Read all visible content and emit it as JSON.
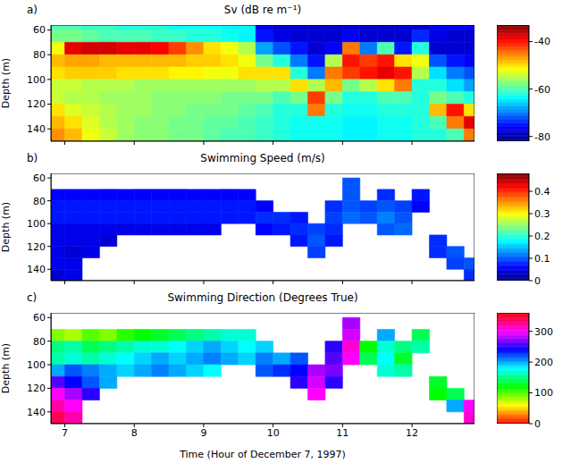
{
  "chart_data": [
    {
      "type": "heatmap",
      "panel_label": "a)",
      "title": "Sv (dB re m⁻¹)",
      "y_label": "Depth (m)",
      "tick_labels": "y",
      "xlim": [
        6.8,
        12.9
      ],
      "xticks": [
        7,
        8,
        9,
        10,
        11,
        12
      ],
      "ylim": [
        56,
        150
      ],
      "yticks": [
        60,
        80,
        100,
        120,
        140
      ],
      "x_edges": [
        6.8,
        7,
        7.25,
        7.5,
        7.75,
        8,
        8.25,
        8.5,
        8.75,
        9,
        9.25,
        9.5,
        9.75,
        10,
        10.25,
        10.5,
        10.75,
        11,
        11.25,
        11.5,
        11.75,
        12,
        12.25,
        12.5,
        12.75,
        12.9
      ],
      "y_edges": [
        56,
        60,
        70,
        80,
        90,
        100,
        110,
        120,
        130,
        140,
        150
      ],
      "values": [
        [
          -60,
          -60,
          -61,
          -61,
          -62,
          -62,
          -62,
          -63,
          -63,
          -63,
          -64,
          -64,
          -76,
          -78,
          -78,
          -78,
          -78,
          -78,
          -78,
          -78,
          -78,
          -78,
          -76,
          -76,
          -76
        ],
        [
          -58,
          -58,
          -59,
          -60,
          -60,
          -60,
          -61,
          -61,
          -62,
          -62,
          -63,
          -64,
          -75,
          -77,
          -78,
          -78,
          -78,
          -76,
          -78,
          -78,
          -78,
          -74,
          -77,
          -78,
          -78
        ],
        [
          -52,
          -38,
          -37,
          -37,
          -38,
          -38,
          -39,
          -42,
          -46,
          -50,
          -52,
          -55,
          -68,
          -72,
          -75,
          -78,
          -76,
          -45,
          -70,
          -60,
          -75,
          -62,
          -78,
          -78,
          -78
        ],
        [
          -48,
          -47,
          -47,
          -48,
          -48,
          -48,
          -48,
          -48,
          -49,
          -49,
          -50,
          -52,
          -58,
          -62,
          -70,
          -75,
          -55,
          -40,
          -42,
          -40,
          -50,
          -52,
          -72,
          -75,
          -76
        ],
        [
          -50,
          -49,
          -49,
          -49,
          -50,
          -50,
          -50,
          -51,
          -51,
          -52,
          -52,
          -50,
          -50,
          -50,
          -62,
          -70,
          -45,
          -42,
          -40,
          -38,
          -40,
          -55,
          -65,
          -70,
          -72
        ],
        [
          -54,
          -54,
          -55,
          -55,
          -55,
          -56,
          -56,
          -56,
          -56,
          -56,
          -56,
          -56,
          -55,
          -55,
          -50,
          -55,
          -48,
          -58,
          -55,
          -50,
          -45,
          -62,
          -62,
          -65,
          -68
        ],
        [
          -54,
          -55,
          -55,
          -56,
          -56,
          -56,
          -57,
          -57,
          -57,
          -57,
          -58,
          -58,
          -58,
          -60,
          -58,
          -42,
          -58,
          -62,
          -62,
          -60,
          -60,
          -62,
          -58,
          -60,
          -62
        ],
        [
          -50,
          -53,
          -54,
          -55,
          -56,
          -56,
          -57,
          -57,
          -58,
          -58,
          -58,
          -59,
          -60,
          -62,
          -62,
          -45,
          -62,
          -63,
          -63,
          -62,
          -62,
          -62,
          -48,
          -40,
          -50
        ],
        [
          -48,
          -50,
          -53,
          -55,
          -56,
          -57,
          -57,
          -58,
          -58,
          -59,
          -59,
          -60,
          -61,
          -62,
          -63,
          -63,
          -63,
          -64,
          -64,
          -63,
          -63,
          -62,
          -60,
          -45,
          -38
        ],
        [
          -46,
          -48,
          -52,
          -54,
          -56,
          -57,
          -57,
          -58,
          -58,
          -59,
          -60,
          -60,
          -61,
          -62,
          -63,
          -63,
          -63,
          -64,
          -64,
          -63,
          -63,
          -62,
          -62,
          -60,
          -45
        ]
      ],
      "colorbar_range": [
        -82,
        -33
      ],
      "colorbar_ticks": [
        -80,
        -60,
        -40
      ]
    },
    {
      "type": "heatmap",
      "panel_label": "b)",
      "title": "Swimming Speed (m/s)",
      "y_label": "Depth (m)",
      "tick_labels": "y",
      "xlim": [
        6.8,
        12.9
      ],
      "xticks": [
        7,
        8,
        9,
        10,
        11,
        12
      ],
      "ylim": [
        56,
        150
      ],
      "yticks": [
        60,
        80,
        100,
        120,
        140
      ],
      "x_edges": [
        6.8,
        7,
        7.25,
        7.5,
        7.75,
        8,
        8.25,
        8.5,
        8.75,
        9,
        9.25,
        9.5,
        9.75,
        10,
        10.25,
        10.5,
        10.75,
        11,
        11.25,
        11.5,
        11.75,
        12,
        12.25,
        12.5,
        12.75,
        12.9
      ],
      "y_edges": [
        56,
        60,
        70,
        80,
        90,
        100,
        110,
        120,
        130,
        140,
        150
      ],
      "values": [
        [
          null,
          null,
          null,
          null,
          null,
          null,
          null,
          null,
          null,
          null,
          null,
          null,
          null,
          null,
          null,
          null,
          null,
          null,
          null,
          null,
          null,
          null,
          null,
          null,
          null
        ],
        [
          null,
          null,
          null,
          null,
          null,
          null,
          null,
          null,
          null,
          null,
          null,
          null,
          null,
          null,
          null,
          null,
          null,
          0.1,
          null,
          null,
          null,
          null,
          null,
          null,
          null
        ],
        [
          0.06,
          0.06,
          0.06,
          0.06,
          0.06,
          0.06,
          0.06,
          0.06,
          0.06,
          0.06,
          0.06,
          0.06,
          null,
          null,
          null,
          null,
          null,
          0.1,
          null,
          0.08,
          null,
          0.07,
          null,
          null,
          null
        ],
        [
          0.07,
          0.07,
          0.07,
          0.07,
          0.07,
          0.07,
          0.07,
          0.07,
          0.07,
          0.07,
          0.07,
          0.07,
          0.06,
          null,
          null,
          null,
          0.08,
          0.1,
          0.09,
          0.1,
          0.09,
          0.06,
          null,
          null,
          null
        ],
        [
          0.07,
          0.07,
          0.07,
          0.07,
          0.07,
          0.07,
          0.07,
          0.07,
          0.07,
          0.07,
          0.07,
          0.07,
          0.08,
          0.08,
          0.07,
          null,
          0.09,
          0.11,
          0.1,
          0.12,
          0.1,
          null,
          null,
          null,
          null
        ],
        [
          0.05,
          0.05,
          0.05,
          0.05,
          0.05,
          0.05,
          0.05,
          0.05,
          0.05,
          0.05,
          null,
          null,
          0.06,
          0.07,
          0.08,
          0.09,
          0.08,
          null,
          null,
          0.1,
          0.11,
          null,
          null,
          null,
          null
        ],
        [
          0.05,
          0.05,
          0.05,
          0.04,
          null,
          null,
          null,
          null,
          null,
          null,
          null,
          null,
          null,
          null,
          0.07,
          0.1,
          0.07,
          null,
          null,
          null,
          null,
          null,
          0.08,
          null,
          null
        ],
        [
          0.05,
          0.04,
          0.05,
          null,
          null,
          null,
          null,
          null,
          null,
          null,
          null,
          null,
          null,
          null,
          null,
          0.09,
          null,
          null,
          null,
          null,
          null,
          null,
          0.08,
          0.1,
          null
        ],
        [
          0.05,
          0.05,
          null,
          null,
          null,
          null,
          null,
          null,
          null,
          null,
          null,
          null,
          null,
          null,
          null,
          null,
          null,
          null,
          null,
          null,
          null,
          null,
          null,
          0.09,
          0.1
        ],
        [
          0.04,
          0.05,
          null,
          null,
          null,
          null,
          null,
          null,
          null,
          null,
          null,
          null,
          null,
          null,
          null,
          null,
          null,
          null,
          null,
          null,
          null,
          null,
          null,
          null,
          0.08
        ]
      ],
      "colorbar_range": [
        0,
        0.48
      ],
      "colorbar_ticks": [
        0,
        0.1,
        0.2,
        0.3,
        0.4
      ]
    },
    {
      "type": "heatmap",
      "panel_label": "c)",
      "title": "Swimming Direction (Degrees True)",
      "y_label": "Depth (m)",
      "x_label": "Time (Hour of December 7, 1997)",
      "xlim": [
        6.8,
        12.9
      ],
      "xticks": [
        7,
        8,
        9,
        10,
        11,
        12
      ],
      "ylim": [
        56,
        150
      ],
      "yticks": [
        60,
        80,
        100,
        120,
        140
      ],
      "x_edges": [
        6.8,
        7,
        7.25,
        7.5,
        7.75,
        8,
        8.25,
        8.5,
        8.75,
        9,
        9.25,
        9.5,
        9.75,
        10,
        10.25,
        10.5,
        10.75,
        11,
        11.25,
        11.5,
        11.75,
        12,
        12.25,
        12.5,
        12.75,
        12.9
      ],
      "y_edges": [
        56,
        60,
        70,
        80,
        90,
        100,
        110,
        120,
        130,
        140,
        150
      ],
      "values": [
        [
          null,
          null,
          null,
          null,
          null,
          null,
          null,
          null,
          null,
          null,
          null,
          null,
          null,
          null,
          null,
          null,
          null,
          null,
          null,
          null,
          null,
          null,
          null,
          null,
          null
        ],
        [
          null,
          null,
          null,
          null,
          null,
          null,
          null,
          null,
          null,
          null,
          null,
          null,
          null,
          null,
          null,
          null,
          null,
          280,
          null,
          null,
          null,
          null,
          null,
          null,
          null
        ],
        [
          90,
          80,
          100,
          90,
          110,
          120,
          130,
          140,
          150,
          160,
          170,
          170,
          null,
          null,
          null,
          null,
          null,
          290,
          null,
          200,
          null,
          140,
          null,
          null,
          null
        ],
        [
          150,
          160,
          140,
          150,
          160,
          170,
          170,
          180,
          190,
          200,
          190,
          180,
          190,
          null,
          null,
          null,
          250,
          310,
          120,
          170,
          150,
          160,
          null,
          null,
          null
        ],
        [
          160,
          170,
          160,
          170,
          180,
          190,
          200,
          190,
          200,
          210,
          200,
          190,
          210,
          200,
          220,
          null,
          260,
          300,
          140,
          180,
          130,
          null,
          null,
          null,
          null
        ],
        [
          200,
          220,
          210,
          200,
          190,
          200,
          210,
          200,
          190,
          180,
          null,
          null,
          220,
          230,
          240,
          280,
          270,
          null,
          null,
          170,
          160,
          null,
          null,
          null,
          null
        ],
        [
          260,
          240,
          220,
          200,
          null,
          null,
          null,
          null,
          null,
          null,
          null,
          null,
          null,
          null,
          250,
          290,
          250,
          null,
          null,
          null,
          null,
          null,
          130,
          null,
          null
        ],
        [
          300,
          280,
          250,
          null,
          null,
          null,
          null,
          null,
          null,
          null,
          null,
          null,
          null,
          null,
          null,
          300,
          null,
          null,
          null,
          null,
          null,
          null,
          120,
          140,
          null
        ],
        [
          320,
          300,
          null,
          null,
          null,
          null,
          null,
          null,
          null,
          null,
          null,
          null,
          null,
          null,
          null,
          null,
          null,
          null,
          null,
          null,
          null,
          null,
          null,
          200,
          300
        ],
        [
          340,
          320,
          null,
          null,
          null,
          null,
          null,
          null,
          null,
          null,
          null,
          null,
          null,
          null,
          null,
          null,
          null,
          null,
          null,
          null,
          null,
          null,
          null,
          null,
          310
        ]
      ],
      "colorbar_range": [
        0,
        360
      ],
      "colorbar_ticks": [
        0,
        100,
        200,
        300
      ]
    }
  ]
}
